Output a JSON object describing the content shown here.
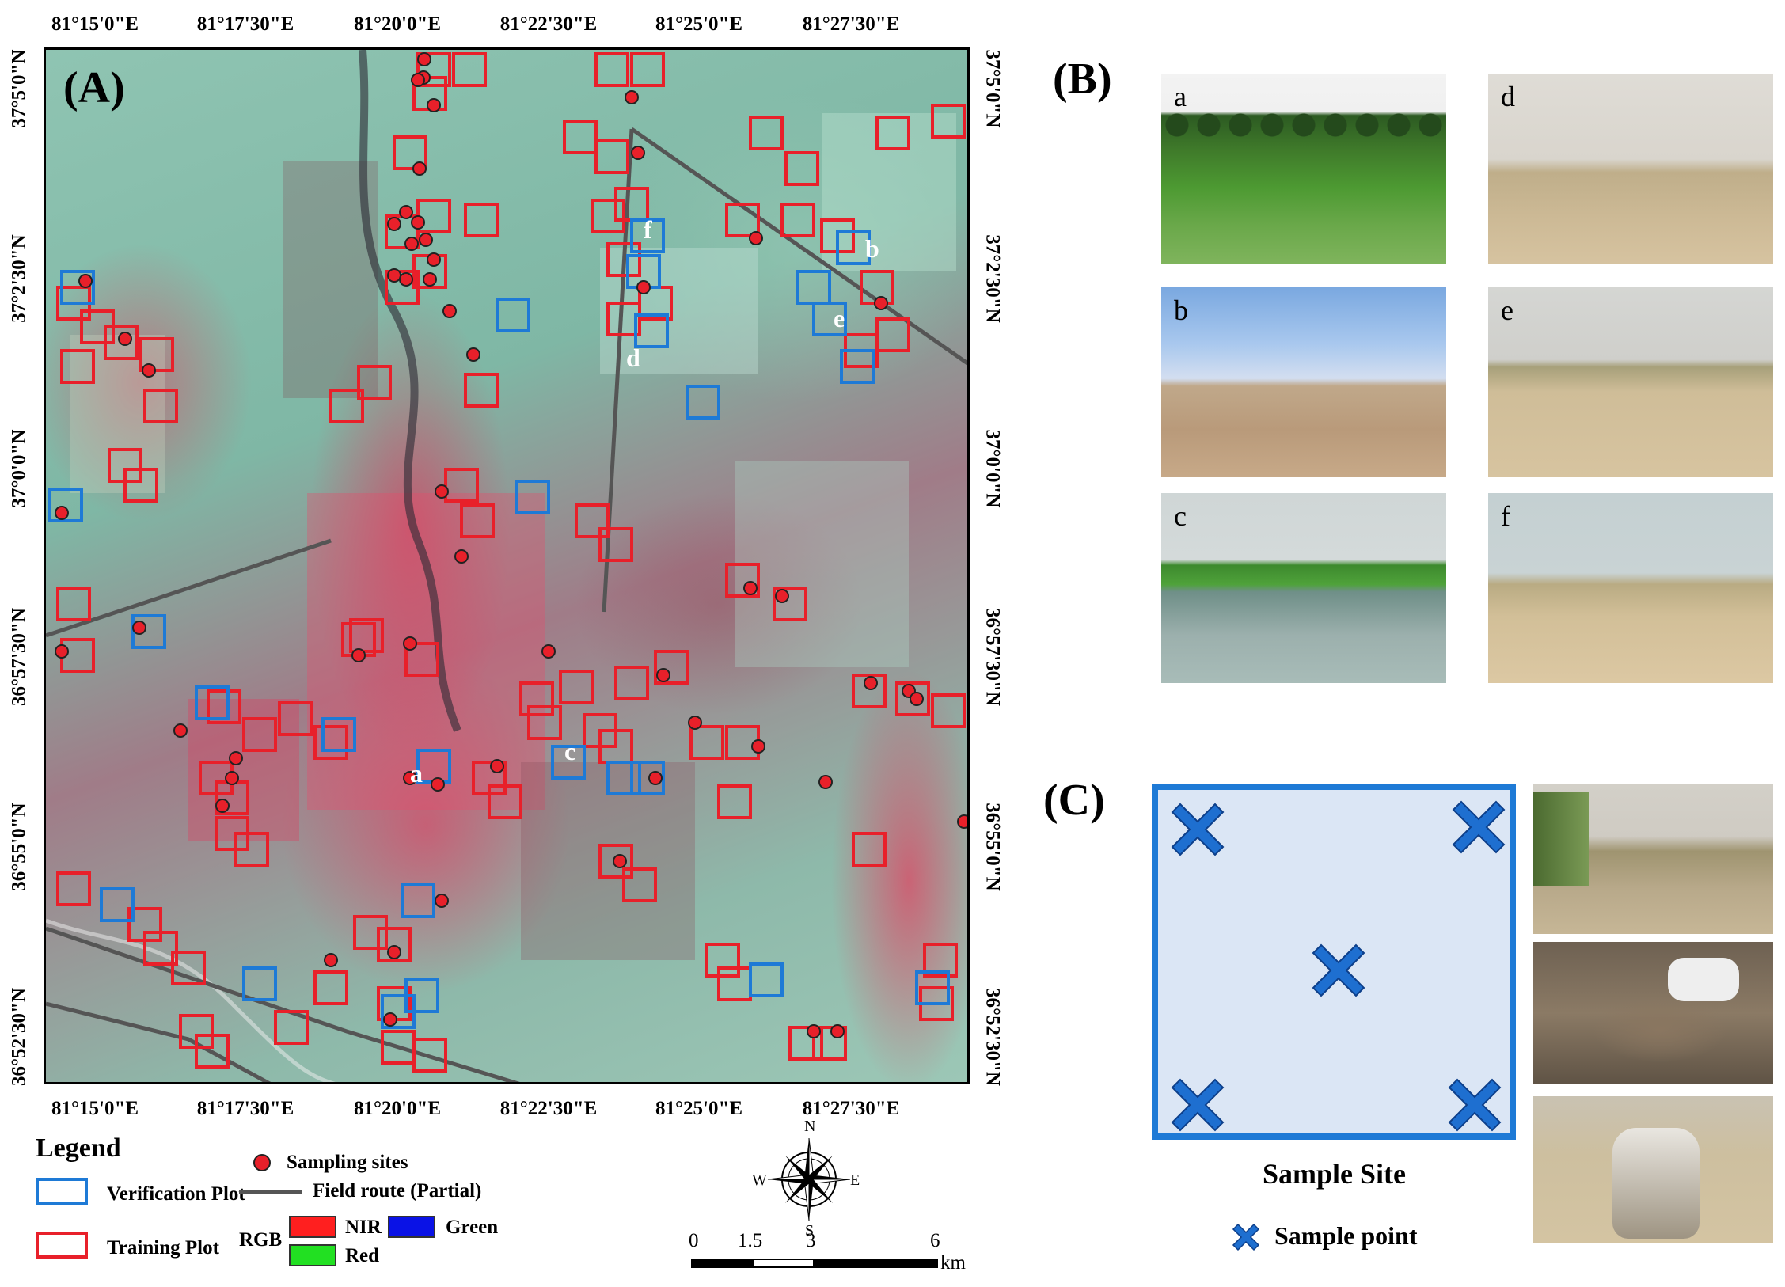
{
  "panel_labels": {
    "a": "(A)",
    "b": "(B)",
    "c": "(C)"
  },
  "map": {
    "top_ticks": [
      "81°15'0\"E",
      "81°17'30\"E",
      "81°20'0\"E",
      "81°22'30\"E",
      "81°25'0\"E",
      "81°27'30\"E"
    ],
    "bottom_ticks": [
      "81°15'0\"E",
      "81°17'30\"E",
      "81°20'0\"E",
      "81°22'30\"E",
      "81°25'0\"E",
      "81°27'30\"E"
    ],
    "left_ticks": [
      "37°5'0\"N",
      "37°2'30\"N",
      "37°0'0\"N",
      "36°57'30\"N",
      "36°55'0\"N",
      "36°52'30\"N"
    ],
    "right_ticks": [
      "37°5'0\"N",
      "37°2'30\"N",
      "37°0'0\"N",
      "36°57'30\"N",
      "36°55'0\"N",
      "36°52'30\"N"
    ],
    "site_letters": [
      "a",
      "b",
      "c",
      "d",
      "e",
      "f"
    ],
    "colors": {
      "training": "#e8202a",
      "verification": "#1e7ad6",
      "sampling": "#e8202a",
      "route": "#555555"
    }
  },
  "legend": {
    "title": "Legend",
    "verification": "Verification Plot",
    "training": "Training Plot",
    "sampling": "Sampling sites",
    "route": "Field route (Partial)",
    "rgb": "RGB",
    "nir": "NIR",
    "red": "Red",
    "green": "Green",
    "swatch_colors": {
      "nir": "#ff1f1f",
      "red": "#22e022",
      "green": "#0a12e6"
    }
  },
  "compass": {
    "n": "N",
    "s": "S",
    "e": "E",
    "w": "W"
  },
  "scalebar": {
    "ticks": [
      "0",
      "1.5",
      "3",
      "6"
    ],
    "unit": "km"
  },
  "photos": [
    {
      "letter": "a"
    },
    {
      "letter": "d"
    },
    {
      "letter": "b"
    },
    {
      "letter": "e"
    },
    {
      "letter": "c"
    },
    {
      "letter": "f"
    }
  ],
  "sample_site": {
    "caption": "Sample Site",
    "legend_label": "Sample point",
    "marker_color": "#1e6fd0",
    "frame_color": "#1e7ad6",
    "fill_color": "#dbe6f5"
  }
}
